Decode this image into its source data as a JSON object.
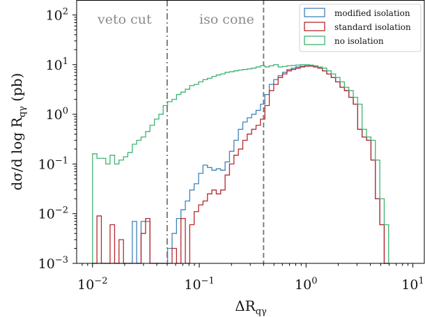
{
  "chart_data": {
    "type": "line",
    "step": true,
    "xlabel": "ΔR",
    "xlabel_sub": "qγ",
    "ylabel": "dσ/d log R",
    "ylabel_sub": "qγ",
    "ylabel_unit": "(pb)",
    "xscale": "log",
    "yscale": "log",
    "xlim": [
      0.0071,
      13
    ],
    "ylim": [
      0.001,
      200
    ],
    "grid": false,
    "legend_position": "top-right",
    "x_ticks": [
      {
        "base": "10",
        "exp": "−2",
        "value": 0.01
      },
      {
        "base": "10",
        "exp": "−1",
        "value": 0.1
      },
      {
        "base": "10",
        "exp": "0",
        "value": 1
      },
      {
        "base": "10",
        "exp": "1",
        "value": 10
      }
    ],
    "y_ticks": [
      {
        "base": "10",
        "exp": "−3",
        "value": 0.001
      },
      {
        "base": "10",
        "exp": "−2",
        "value": 0.01
      },
      {
        "base": "10",
        "exp": "−1",
        "value": 0.1
      },
      {
        "base": "10",
        "exp": "0",
        "value": 1
      },
      {
        "base": "10",
        "exp": "1",
        "value": 10
      },
      {
        "base": "10",
        "exp": "2",
        "value": 100
      }
    ],
    "vlines": [
      {
        "x": 0.05,
        "style": "dashdot",
        "label": "veto cut"
      },
      {
        "x": 0.4,
        "style": "dashed",
        "label": "iso cone"
      }
    ],
    "bin_edges": [
      0.01,
      0.011,
      0.0121,
      0.0133,
      0.0146,
      0.0161,
      0.0177,
      0.0195,
      0.0214,
      0.0236,
      0.0259,
      0.0285,
      0.0314,
      0.0345,
      0.038,
      0.0418,
      0.0459,
      0.0505,
      0.0556,
      0.0612,
      0.0673,
      0.074,
      0.0814,
      0.0895,
      0.0985,
      0.1083,
      0.1192,
      0.1311,
      0.1442,
      0.1586,
      0.1745,
      0.1919,
      0.2111,
      0.2322,
      0.2555,
      0.281,
      0.3091,
      0.34,
      0.374,
      0.4114,
      0.4526,
      0.4978,
      0.5476,
      0.6024,
      0.6626,
      0.7289,
      0.8018,
      0.882,
      0.9702,
      1.0672,
      1.1739,
      1.2913,
      1.4204,
      1.5625,
      1.7187,
      1.8906,
      2.0797,
      2.2876,
      2.5164,
      2.768,
      3.0448,
      3.3493,
      3.6843,
      4.0527,
      4.458,
      4.9038,
      5.3941,
      5.9336
    ],
    "series": [
      {
        "name": "modified isolation",
        "color": "#3f83b8",
        "values": [
          0.001,
          0.001,
          0.001,
          0.001,
          0.001,
          0.001,
          0.001,
          0.001,
          0.001,
          0.007,
          0.001,
          0.007,
          0.007,
          0.001,
          0.001,
          0.001,
          0.001,
          0.002,
          0.004,
          0.008,
          0.012,
          0.018,
          0.03,
          0.04,
          0.065,
          0.095,
          0.085,
          0.075,
          0.08,
          0.075,
          0.11,
          0.18,
          0.3,
          0.5,
          0.7,
          0.85,
          1.0,
          1.2,
          1.6,
          2.5,
          4.0,
          5.0,
          6.0,
          7.0,
          8.0,
          8.5,
          9.0,
          9.3,
          9.5,
          9.4,
          9.0,
          8.5,
          7.5,
          6.5,
          5.5,
          4.5,
          3.5,
          3.0,
          2.2,
          1.6,
          0.5,
          0.35,
          0.3,
          0.12,
          0.02,
          0.006,
          0.001
        ]
      },
      {
        "name": "standard isolation",
        "color": "#b8272c",
        "values": [
          0.001,
          0.009,
          0.001,
          0.001,
          0.006,
          0.001,
          0.003,
          0.001,
          0.001,
          0.001,
          0.001,
          0.004,
          0.008,
          0.001,
          0.001,
          0.001,
          0.001,
          0.001,
          0.002,
          0.001,
          0.008,
          0.001,
          0.006,
          0.011,
          0.015,
          0.018,
          0.025,
          0.03,
          0.025,
          0.03,
          0.06,
          0.1,
          0.15,
          0.2,
          0.3,
          0.4,
          0.5,
          0.6,
          0.8,
          1.5,
          3.0,
          4.0,
          5.5,
          6.5,
          7.5,
          8.0,
          8.5,
          9.0,
          9.3,
          9.4,
          9.0,
          8.5,
          7.5,
          6.5,
          5.5,
          4.5,
          3.5,
          3.0,
          2.2,
          1.6,
          0.5,
          0.35,
          0.3,
          0.12,
          0.02,
          0.006,
          0.001
        ]
      },
      {
        "name": "no isolation",
        "color": "#3cb371",
        "values": [
          0.16,
          0.13,
          0.13,
          0.1,
          0.15,
          0.1,
          0.12,
          0.14,
          0.17,
          0.25,
          0.3,
          0.35,
          0.45,
          0.6,
          0.8,
          1.0,
          1.5,
          1.8,
          2.0,
          2.5,
          2.8,
          3.2,
          3.8,
          4.0,
          4.5,
          5.0,
          5.3,
          5.8,
          6.2,
          6.5,
          7.0,
          7.2,
          7.5,
          7.8,
          8.0,
          8.2,
          8.5,
          9.0,
          9.5,
          9.0,
          9.5,
          10.0,
          9.0,
          9.2,
          9.5,
          9.6,
          9.8,
          10.0,
          10.0,
          9.8,
          9.5,
          9.0,
          8.5,
          7.5,
          6.5,
          5.5,
          4.5,
          3.5,
          3.0,
          2.2,
          1.6,
          0.5,
          0.35,
          0.3,
          0.12,
          0.02,
          0.006
        ]
      }
    ]
  }
}
